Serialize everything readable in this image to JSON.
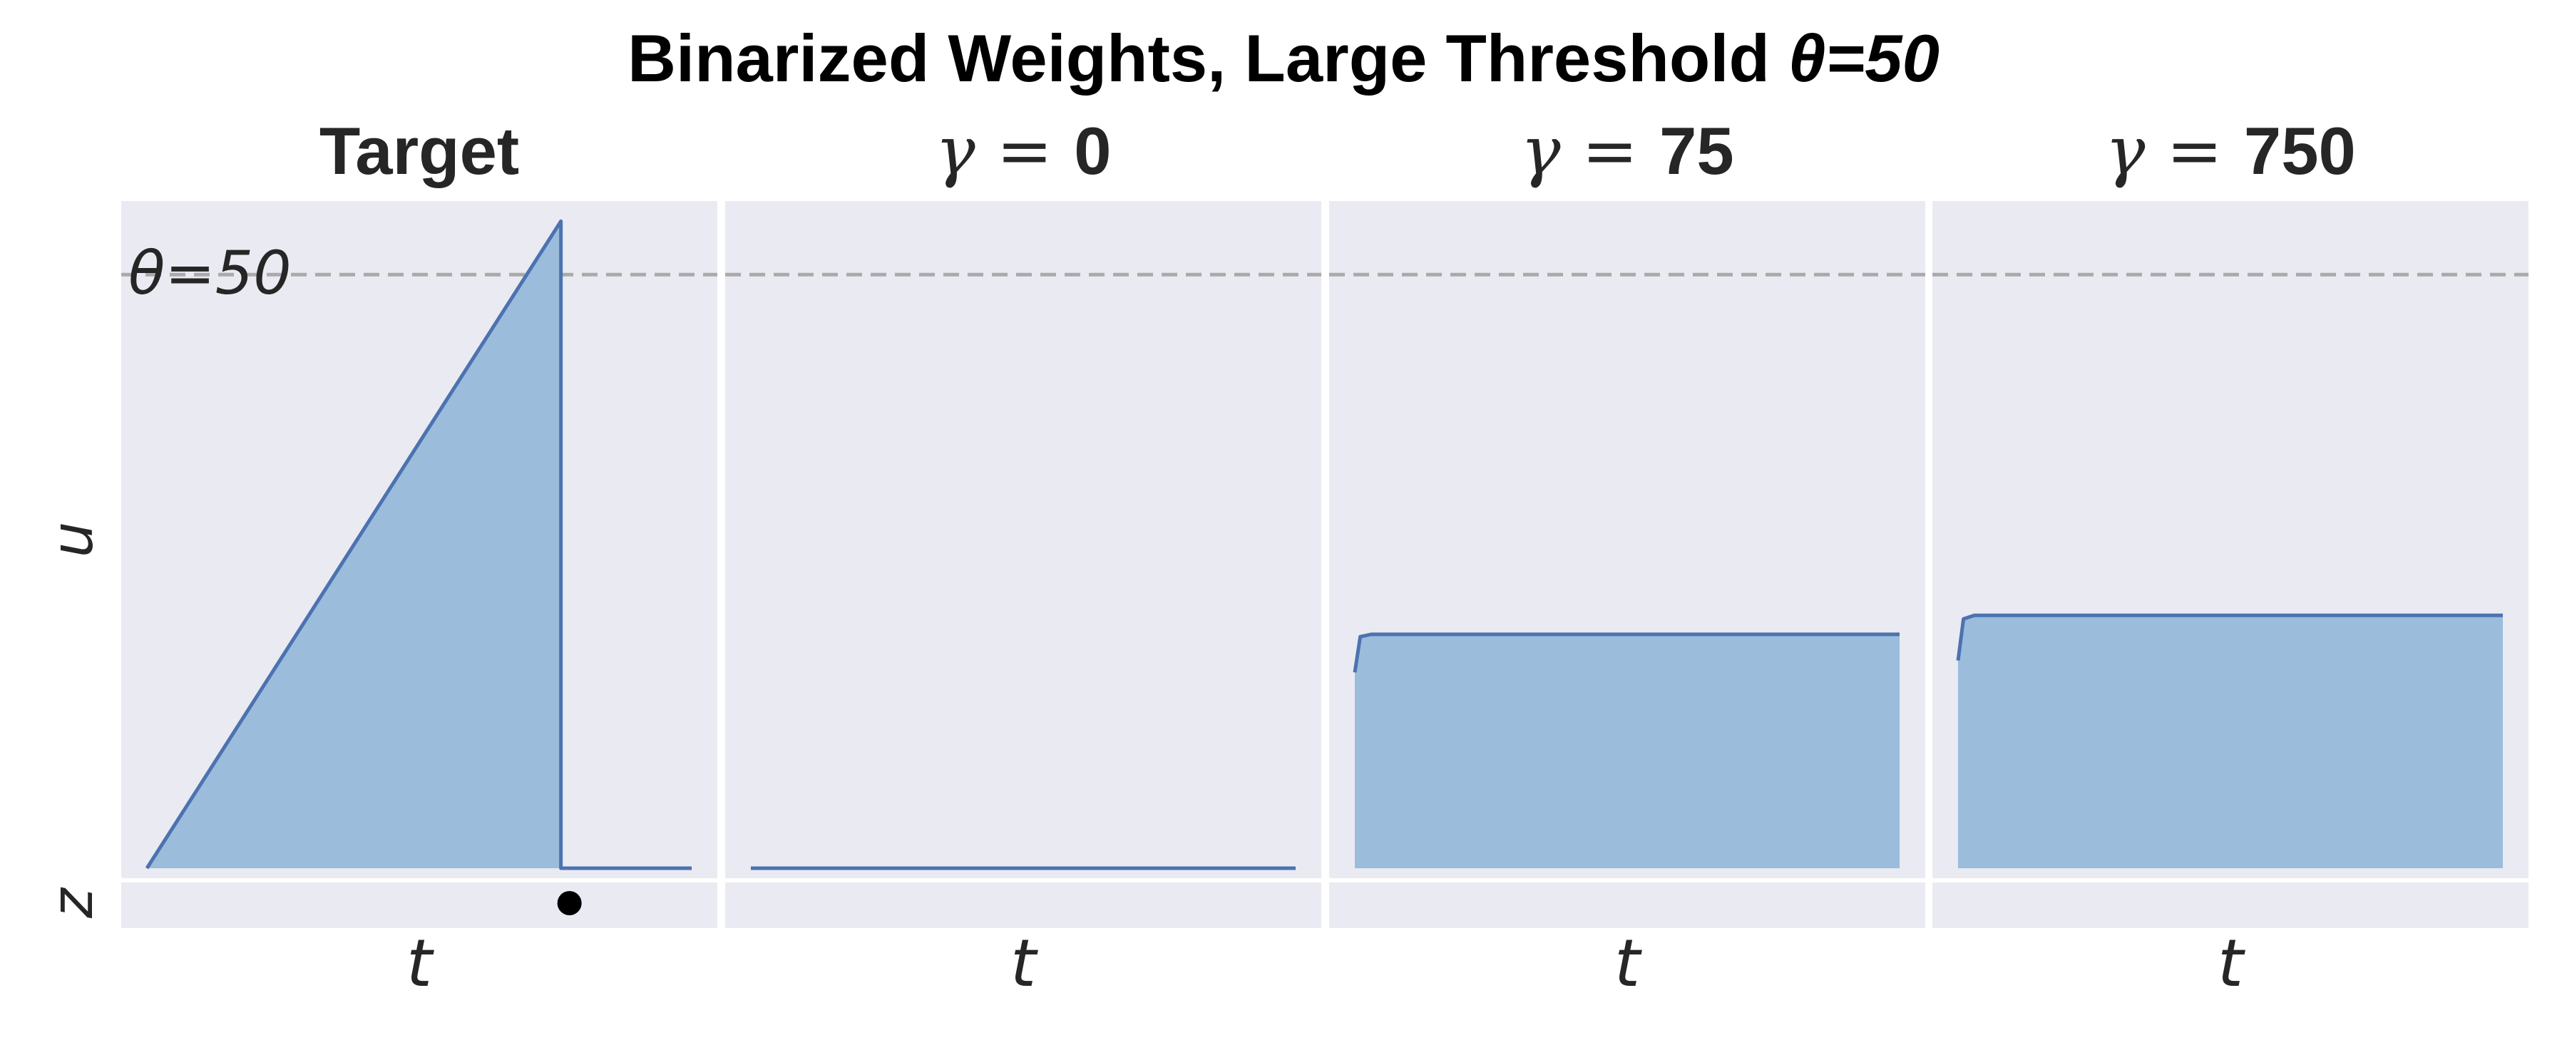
{
  "figure": {
    "suptitle_main": "Binarized Weights, Large Threshold ",
    "suptitle_theta": "θ=50",
    "threshold_label": "θ=50",
    "colors": {
      "fill": "#9bbcdb",
      "line": "#4c72b0",
      "background": "#eaeaf2",
      "threshold": "#aaaaaa",
      "spike": "#000000"
    }
  },
  "chart_data": [
    {
      "type": "area",
      "title": "Target",
      "title_prefix": "",
      "title_value": "",
      "xlabel": "t",
      "ylabel_top": "u",
      "ylabel_bottom": "z",
      "threshold": 50,
      "ylim": [
        0,
        55
      ],
      "x": [
        0,
        0.76,
        0.76,
        1
      ],
      "y": [
        0,
        54.5,
        0,
        0
      ],
      "spikes": [
        0.76
      ]
    },
    {
      "type": "area",
      "title": "",
      "title_prefix": "γ = ",
      "title_value": "0",
      "xlabel": "t",
      "threshold": 50,
      "ylim": [
        0,
        55
      ],
      "x": [
        0,
        1
      ],
      "y": [
        0,
        0
      ],
      "spikes": []
    },
    {
      "type": "area",
      "title": "",
      "title_prefix": "γ = ",
      "title_value": "75",
      "xlabel": "t",
      "threshold": 50,
      "ylim": [
        0,
        55
      ],
      "x": [
        0,
        0.01,
        0.03,
        1
      ],
      "y": [
        16.5,
        19.5,
        19.7,
        19.7
      ],
      "spikes": []
    },
    {
      "type": "area",
      "title": "",
      "title_prefix": "γ = ",
      "title_value": "750",
      "xlabel": "t",
      "threshold": 50,
      "ylim": [
        0,
        55
      ],
      "x": [
        0,
        0.01,
        0.03,
        1
      ],
      "y": [
        17.5,
        21.0,
        21.3,
        21.3
      ],
      "spikes": []
    }
  ]
}
